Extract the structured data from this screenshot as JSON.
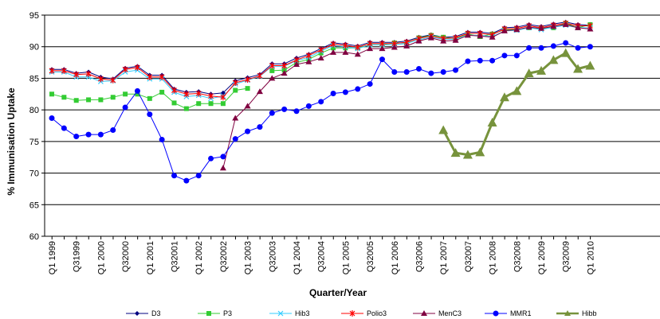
{
  "chart_data": {
    "type": "line",
    "title": "",
    "xlabel": "Quarter/Year",
    "ylabel": "% Immunisation Uptake",
    "ylim": [
      60,
      95
    ],
    "y_ticks": [
      60,
      65,
      70,
      75,
      80,
      85,
      90,
      95
    ],
    "grid": "horizontal",
    "legend_position": "bottom",
    "x_tick_labels": [
      "Q1 1999",
      "Q3 1999",
      "Q1 2000",
      "Q3 2000",
      "Q1 2001",
      "Q3 2001",
      "Q1 2002",
      "Q3 2002",
      "Q1 2003",
      "Q3 2003",
      "Q1 2004",
      "Q3 2004",
      "Q1 2005",
      "Q3 2005",
      "Q1 2006",
      "Q3 2006",
      "Q1 2007",
      "Q3 2007",
      "Q1 2008",
      "Q3 2008",
      "Q1 2009",
      "Q3 2009",
      "Q1 2010"
    ],
    "x_tick_display": [
      "Q1 1999",
      "Q31999",
      "Q1 2000",
      "Q32000",
      "Q1 2001",
      "Q32001",
      "Q1 2002",
      "Q32002",
      "Q1 2003",
      "Q32003",
      "Q1 2004",
      "Q32004",
      "Q1 2005",
      "Q32005",
      "Q1 2006",
      "Q32006",
      "Q1 2007",
      "Q32007",
      "Q1 2008",
      "Q32008",
      "Q1 2009",
      "Q32009",
      "Q1 2010"
    ],
    "quarters": [
      "Q1 1999",
      "Q2 1999",
      "Q3 1999",
      "Q4 1999",
      "Q1 2000",
      "Q2 2000",
      "Q3 2000",
      "Q4 2000",
      "Q1 2001",
      "Q2 2001",
      "Q3 2001",
      "Q4 2001",
      "Q1 2002",
      "Q2 2002",
      "Q3 2002",
      "Q4 2002",
      "Q1 2003",
      "Q2 2003",
      "Q3 2003",
      "Q4 2003",
      "Q1 2004",
      "Q2 2004",
      "Q3 2004",
      "Q4 2004",
      "Q1 2005",
      "Q2 2005",
      "Q3 2005",
      "Q4 2005",
      "Q1 2006",
      "Q2 2006",
      "Q3 2006",
      "Q4 2006",
      "Q1 2007",
      "Q2 2007",
      "Q3 2007",
      "Q4 2007",
      "Q1 2008",
      "Q2 2008",
      "Q3 2008",
      "Q4 2008",
      "Q1 2009",
      "Q2 2009",
      "Q3 2009",
      "Q4 2009",
      "Q1 2010"
    ],
    "series": [
      {
        "name": "D3",
        "color": "#000080",
        "marker": "diamond",
        "width": 1,
        "values": [
          86.4,
          86.4,
          85.8,
          86.0,
          85.2,
          84.9,
          86.6,
          86.9,
          85.5,
          85.5,
          83.3,
          82.8,
          82.9,
          82.5,
          82.7,
          84.6,
          85.1,
          85.6,
          87.3,
          87.3,
          88.2,
          88.8,
          89.7,
          90.6,
          90.4,
          90.1,
          90.7,
          90.7,
          90.7,
          90.9,
          91.5,
          91.9,
          91.5,
          91.6,
          92.3,
          92.3,
          92.1,
          93.0,
          93.1,
          93.5,
          93.2,
          93.6,
          93.9,
          93.5,
          93.4
        ]
      },
      {
        "name": "P3",
        "color": "#33cc33",
        "marker": "square",
        "width": 1,
        "values": [
          82.5,
          82.0,
          81.5,
          81.6,
          81.6,
          82.0,
          82.5,
          82.5,
          81.8,
          82.8,
          81.1,
          80.2,
          81.0,
          81.0,
          81.0,
          83.1,
          83.4,
          null,
          86.2,
          86.3,
          87.5,
          88.0,
          89.0,
          89.8,
          89.8,
          89.8,
          90.3,
          90.3,
          90.6,
          90.6,
          91.4,
          91.8,
          91.5,
          91.3,
          92.0,
          91.6,
          92.0,
          92.7,
          92.7,
          93.0,
          92.9,
          93.0,
          93.7,
          93.0,
          93.5
        ]
      },
      {
        "name": "Hib3",
        "color": "#33ccff",
        "marker": "x",
        "width": 1,
        "values": [
          86.0,
          86.0,
          85.2,
          85.2,
          84.5,
          84.6,
          86.0,
          86.3,
          84.9,
          84.9,
          82.8,
          82.1,
          82.3,
          81.8,
          82.2,
          84.1,
          84.7,
          85.3,
          86.9,
          86.9,
          87.8,
          88.3,
          89.3,
          90.2,
          90.0,
          89.7,
          90.3,
          90.3,
          90.3,
          90.5,
          91.1,
          91.5,
          91.2,
          91.2,
          91.8,
          91.8,
          91.6,
          92.5,
          92.6,
          93.0,
          92.7,
          93.1,
          93.4,
          93.0,
          93.0
        ]
      },
      {
        "name": "Polio3",
        "color": "#ff0000",
        "marker": "star",
        "width": 1,
        "values": [
          86.2,
          86.2,
          85.6,
          85.7,
          84.9,
          84.7,
          86.4,
          86.7,
          85.2,
          85.2,
          83.1,
          82.5,
          82.6,
          82.2,
          82.0,
          84.3,
          84.8,
          85.4,
          87.0,
          87.0,
          87.9,
          88.6,
          89.5,
          90.4,
          90.2,
          89.9,
          90.5,
          90.5,
          90.5,
          90.7,
          91.3,
          91.7,
          91.3,
          91.4,
          92.1,
          92.1,
          91.9,
          92.8,
          92.9,
          93.3,
          93.0,
          93.4,
          93.7,
          93.3,
          93.3
        ]
      },
      {
        "name": "MenC3",
        "color": "#800040",
        "marker": "triangle",
        "width": 1,
        "values": [
          null,
          null,
          null,
          null,
          null,
          null,
          null,
          null,
          null,
          null,
          null,
          null,
          null,
          null,
          70.8,
          78.7,
          80.6,
          82.9,
          85.0,
          85.8,
          87.2,
          87.6,
          88.2,
          89.1,
          89.1,
          88.8,
          89.7,
          89.7,
          89.9,
          90.1,
          90.9,
          91.4,
          90.9,
          91.0,
          91.8,
          91.7,
          91.5,
          92.5,
          92.7,
          93.1,
          92.9,
          93.2,
          93.5,
          93.0,
          92.8
        ]
      },
      {
        "name": "MMR1",
        "color": "#0000ff",
        "marker": "circle",
        "width": 1,
        "values": [
          78.7,
          77.1,
          75.8,
          76.1,
          76.1,
          76.8,
          80.4,
          83.0,
          79.3,
          75.3,
          69.6,
          68.8,
          69.6,
          72.3,
          72.6,
          75.4,
          76.6,
          77.3,
          79.5,
          80.1,
          79.8,
          80.6,
          81.3,
          82.6,
          82.8,
          83.3,
          84.1,
          88.0,
          86.0,
          86.0,
          86.5,
          85.8,
          86.0,
          86.3,
          87.7,
          87.8,
          87.8,
          88.6,
          88.6,
          89.8,
          89.8,
          90.1,
          90.6,
          89.8,
          90.0
        ]
      },
      {
        "name": "Hibb",
        "color": "#77933c",
        "marker": "triangle",
        "width": 3,
        "values": [
          null,
          null,
          null,
          null,
          null,
          null,
          null,
          null,
          null,
          null,
          null,
          null,
          null,
          null,
          null,
          null,
          null,
          null,
          null,
          null,
          null,
          null,
          null,
          null,
          null,
          null,
          null,
          null,
          null,
          null,
          null,
          null,
          76.8,
          73.2,
          72.9,
          73.3,
          78.0,
          82.0,
          83.0,
          85.8,
          86.2,
          87.9,
          89.0,
          86.5,
          87.0
        ]
      }
    ]
  }
}
